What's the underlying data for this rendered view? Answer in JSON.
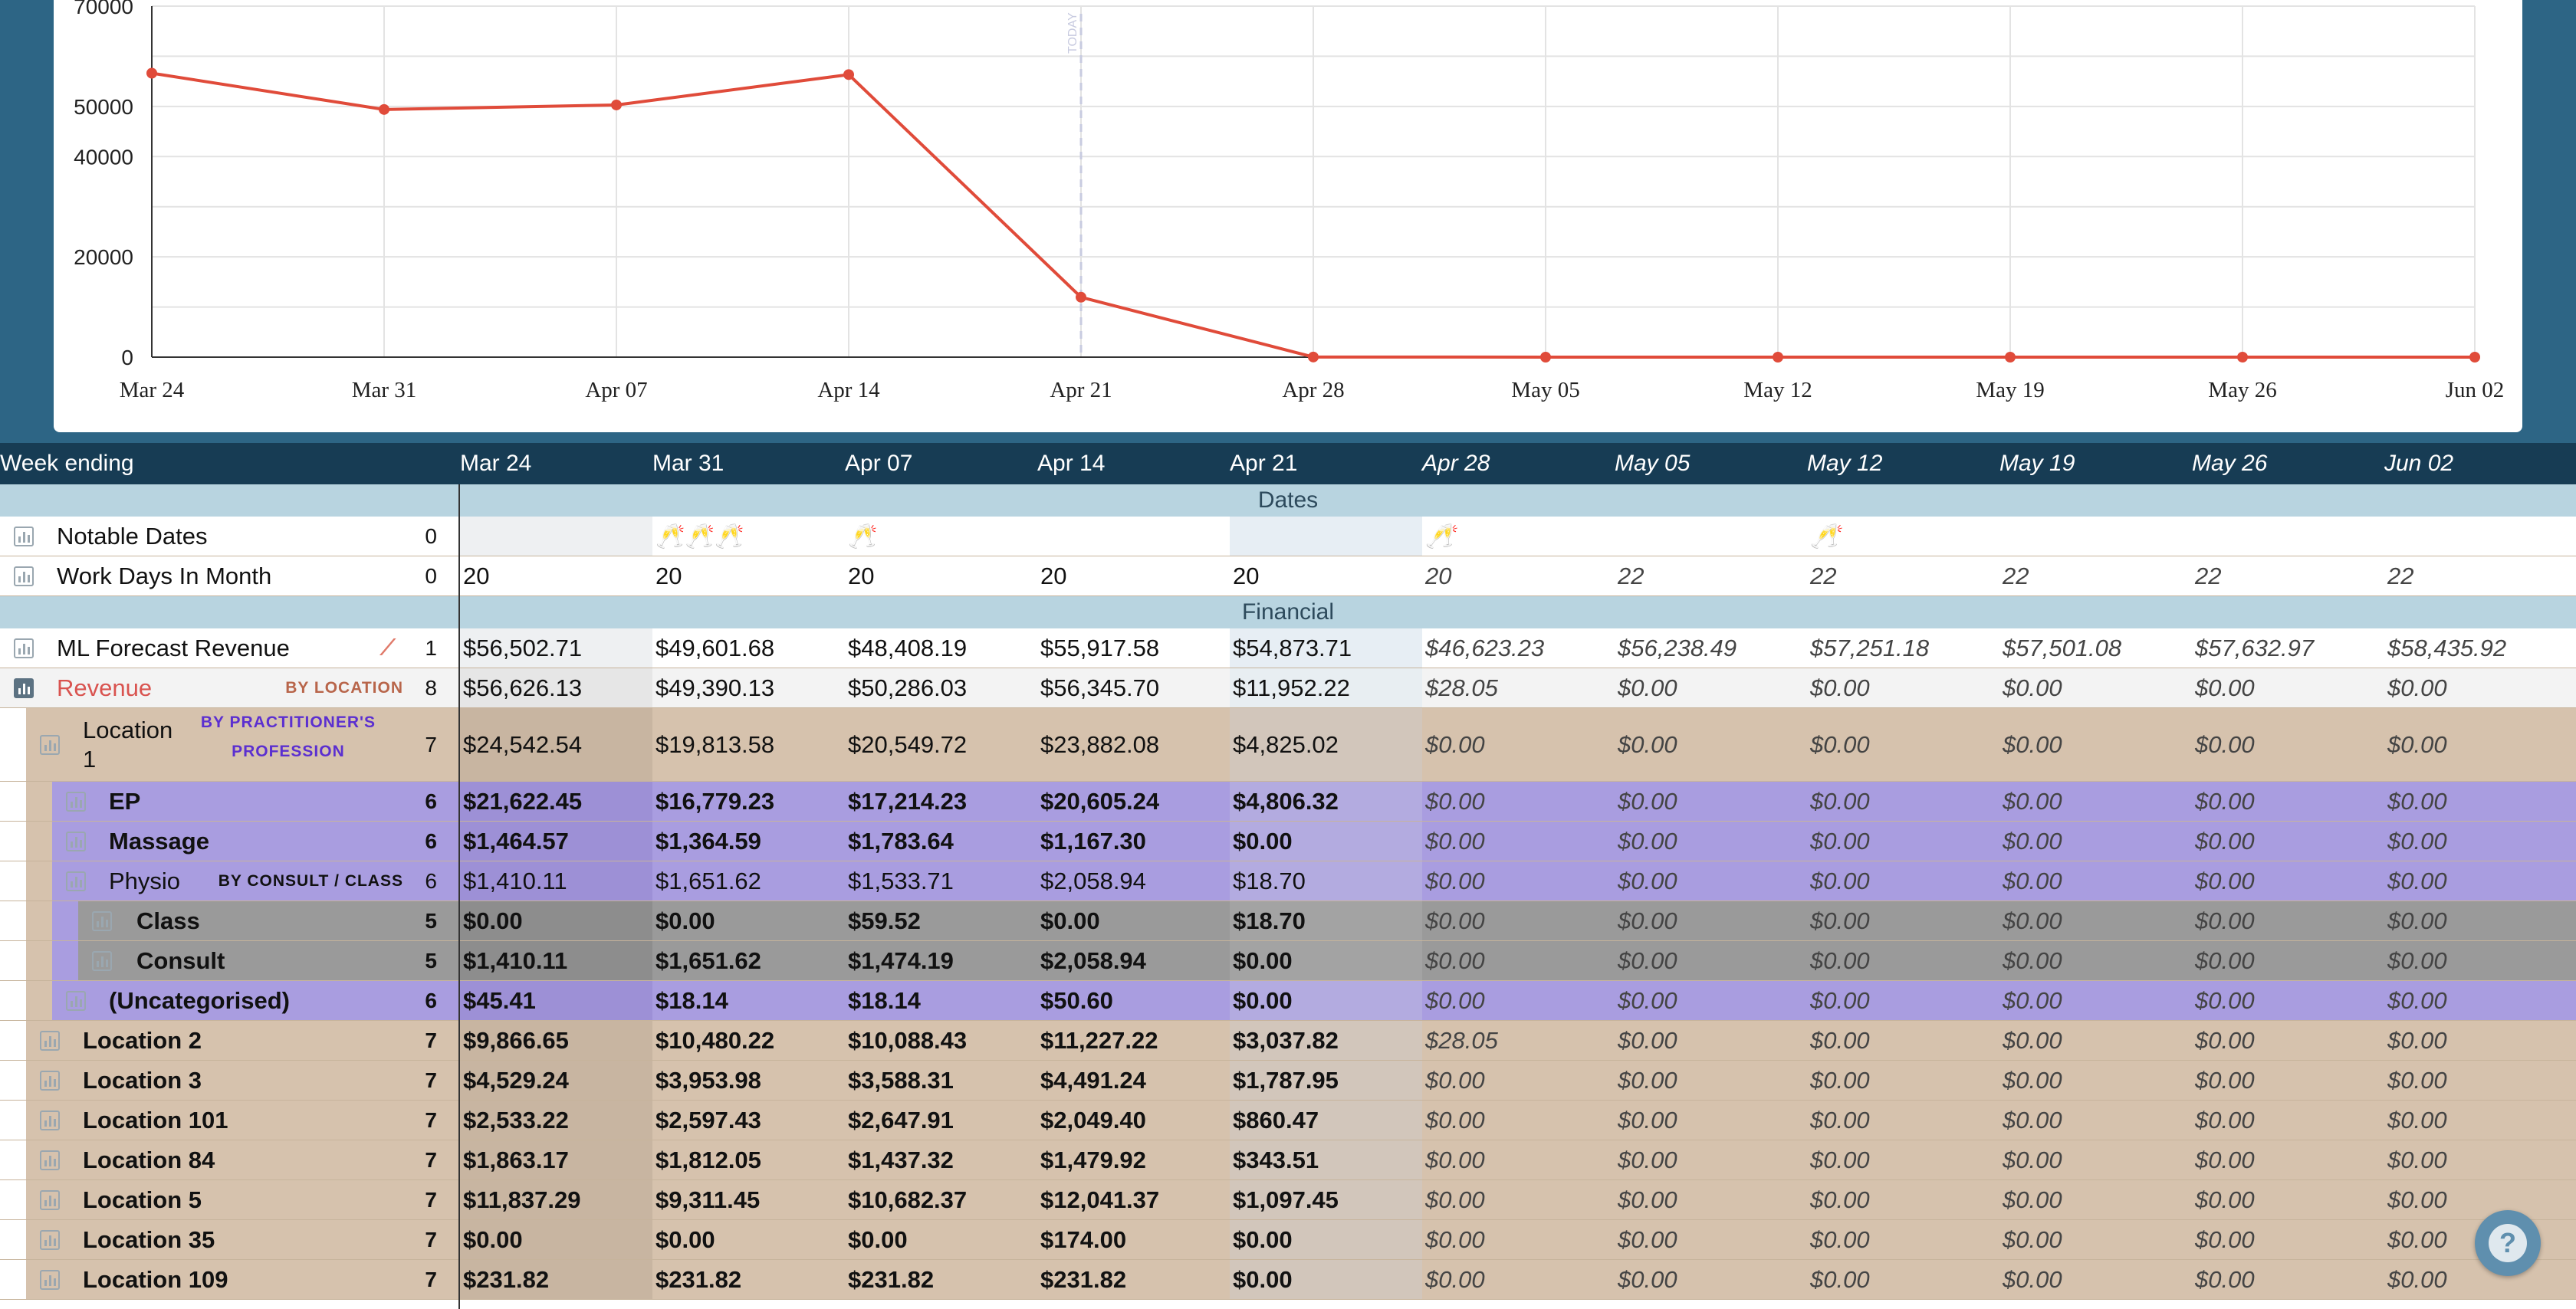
{
  "chart_data": {
    "type": "line",
    "categories": [
      "Mar 24",
      "Mar 31",
      "Apr 07",
      "Apr 14",
      "Apr 21",
      "Apr 28",
      "May 05",
      "May 12",
      "May 19",
      "May 26",
      "Jun 02"
    ],
    "values": [
      56626.13,
      49390.13,
      50286.03,
      56345.7,
      11952.22,
      28.05,
      0,
      0,
      0,
      0,
      0
    ],
    "ylim": [
      0,
      70000
    ],
    "yticks": [
      0,
      20000,
      40000,
      50000,
      70000
    ],
    "today_label": "TODAY",
    "today_category": "Apr 21",
    "line_color": "#e04b3a",
    "grid": true
  },
  "table": {
    "week_header": "Week ending",
    "weeks": [
      "Mar 24",
      "Mar 31",
      "Apr 07",
      "Apr 14",
      "Apr 21",
      "Apr 28",
      "May 05",
      "May 12",
      "May 19",
      "May 26",
      "Jun 02"
    ],
    "future_from_index": 5,
    "sections": {
      "dates": "Dates",
      "financial": "Financial"
    },
    "notable_dates": {
      "label": "Notable Dates",
      "count": "0",
      "icons": [
        "",
        "🥂🥂🥂",
        "🥂",
        "",
        "",
        "🥂",
        "",
        "🥂",
        "",
        "",
        ""
      ]
    },
    "work_days": {
      "label": "Work Days In Month",
      "count": "0",
      "values": [
        "20",
        "20",
        "20",
        "20",
        "20",
        "20",
        "22",
        "22",
        "22",
        "22",
        "22"
      ]
    },
    "rows": [
      {
        "name": "ML Forecast Revenue",
        "count": "1",
        "tag": "",
        "values": [
          "$56,502.71",
          "$49,601.68",
          "$48,408.19",
          "$55,917.58",
          "$54,873.71",
          "$46,623.23",
          "$56,238.49",
          "$57,251.18",
          "$57,501.08",
          "$57,632.97",
          "$58,435.92"
        ]
      },
      {
        "name": "Revenue",
        "count": "8",
        "tag": "BY LOCATION",
        "values": [
          "$56,626.13",
          "$49,390.13",
          "$50,286.03",
          "$56,345.70",
          "$11,952.22",
          "$28.05",
          "$0.00",
          "$0.00",
          "$0.00",
          "$0.00",
          "$0.00"
        ]
      },
      {
        "name": "Location",
        "name2": "1",
        "count": "7",
        "tag": "BY PRACTITIONER'S",
        "tag2": "PROFESSION",
        "values": [
          "$24,542.54",
          "$19,813.58",
          "$20,549.72",
          "$23,882.08",
          "$4,825.02",
          "$0.00",
          "$0.00",
          "$0.00",
          "$0.00",
          "$0.00",
          "$0.00"
        ]
      },
      {
        "name": "EP",
        "count": "6",
        "tag": "",
        "values": [
          "$21,622.45",
          "$16,779.23",
          "$17,214.23",
          "$20,605.24",
          "$4,806.32",
          "$0.00",
          "$0.00",
          "$0.00",
          "$0.00",
          "$0.00",
          "$0.00"
        ]
      },
      {
        "name": "Massage",
        "count": "6",
        "tag": "",
        "values": [
          "$1,464.57",
          "$1,364.59",
          "$1,783.64",
          "$1,167.30",
          "$0.00",
          "$0.00",
          "$0.00",
          "$0.00",
          "$0.00",
          "$0.00",
          "$0.00"
        ]
      },
      {
        "name": "Physio",
        "count": "6",
        "tag": "BY CONSULT / CLASS",
        "values": [
          "$1,410.11",
          "$1,651.62",
          "$1,533.71",
          "$2,058.94",
          "$18.70",
          "$0.00",
          "$0.00",
          "$0.00",
          "$0.00",
          "$0.00",
          "$0.00"
        ]
      },
      {
        "name": "Class",
        "count": "5",
        "tag": "",
        "values": [
          "$0.00",
          "$0.00",
          "$59.52",
          "$0.00",
          "$18.70",
          "$0.00",
          "$0.00",
          "$0.00",
          "$0.00",
          "$0.00",
          "$0.00"
        ]
      },
      {
        "name": "Consult",
        "count": "5",
        "tag": "",
        "values": [
          "$1,410.11",
          "$1,651.62",
          "$1,474.19",
          "$2,058.94",
          "$0.00",
          "$0.00",
          "$0.00",
          "$0.00",
          "$0.00",
          "$0.00",
          "$0.00"
        ]
      },
      {
        "name": "(Uncategorised)",
        "count": "6",
        "tag": "",
        "values": [
          "$45.41",
          "$18.14",
          "$18.14",
          "$50.60",
          "$0.00",
          "$0.00",
          "$0.00",
          "$0.00",
          "$0.00",
          "$0.00",
          "$0.00"
        ]
      },
      {
        "name": "Location 2",
        "count": "7",
        "tag": "",
        "values": [
          "$9,866.65",
          "$10,480.22",
          "$10,088.43",
          "$11,227.22",
          "$3,037.82",
          "$28.05",
          "$0.00",
          "$0.00",
          "$0.00",
          "$0.00",
          "$0.00"
        ]
      },
      {
        "name": "Location 3",
        "count": "7",
        "tag": "",
        "values": [
          "$4,529.24",
          "$3,953.98",
          "$3,588.31",
          "$4,491.24",
          "$1,787.95",
          "$0.00",
          "$0.00",
          "$0.00",
          "$0.00",
          "$0.00",
          "$0.00"
        ]
      },
      {
        "name": "Location 101",
        "count": "7",
        "tag": "",
        "values": [
          "$2,533.22",
          "$2,597.43",
          "$2,647.91",
          "$2,049.40",
          "$860.47",
          "$0.00",
          "$0.00",
          "$0.00",
          "$0.00",
          "$0.00",
          "$0.00"
        ]
      },
      {
        "name": "Location 84",
        "count": "7",
        "tag": "",
        "values": [
          "$1,863.17",
          "$1,812.05",
          "$1,437.32",
          "$1,479.92",
          "$343.51",
          "$0.00",
          "$0.00",
          "$0.00",
          "$0.00",
          "$0.00",
          "$0.00"
        ]
      },
      {
        "name": "Location 5",
        "count": "7",
        "tag": "",
        "values": [
          "$11,837.29",
          "$9,311.45",
          "$10,682.37",
          "$12,041.37",
          "$1,097.45",
          "$0.00",
          "$0.00",
          "$0.00",
          "$0.00",
          "$0.00",
          "$0.00"
        ]
      },
      {
        "name": "Location 35",
        "count": "7",
        "tag": "",
        "values": [
          "$0.00",
          "$0.00",
          "$0.00",
          "$174.00",
          "$0.00",
          "$0.00",
          "$0.00",
          "$0.00",
          "$0.00",
          "$0.00",
          "$0.00"
        ]
      },
      {
        "name": "Location 109",
        "count": "7",
        "tag": "",
        "values": [
          "$231.82",
          "$231.82",
          "$231.82",
          "$231.82",
          "$0.00",
          "$0.00",
          "$0.00",
          "$0.00",
          "$0.00",
          "$0.00",
          "$0.00"
        ]
      }
    ]
  },
  "help": {
    "label": "?"
  },
  "colors": {
    "header_bg": "#173c54",
    "band_bg": "#b8d4e0",
    "location_bg": "#d6c2ad",
    "profession_bg": "#a99de0",
    "consult_bg": "#9a9a9a",
    "revenue_text": "#d9534f",
    "tag_brown": "#b8654a",
    "tag_purple": "#5b2fd0"
  }
}
